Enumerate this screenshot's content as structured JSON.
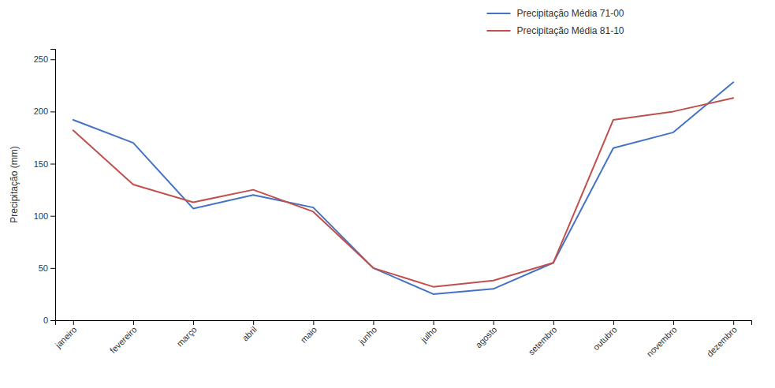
{
  "chart_data": {
    "type": "line",
    "categories": [
      "janeiro",
      "fevereiro",
      "março",
      "abril",
      "maio",
      "junho",
      "julho",
      "agosto",
      "setembro",
      "outubro",
      "novembro",
      "dezembro"
    ],
    "series": [
      {
        "name": "Precipitação Média 71-00",
        "color": "#4472C4",
        "values": [
          192,
          170,
          107,
          120,
          108,
          50,
          25,
          30,
          55,
          165,
          180,
          228
        ]
      },
      {
        "name": "Precipitação Média 81-10",
        "color": "#C0504D",
        "values": [
          182,
          130,
          113,
          125,
          104,
          50,
          32,
          38,
          55,
          192,
          200,
          213
        ]
      }
    ],
    "ylabel": "Precipitação (mm)",
    "ylim": [
      0,
      260
    ],
    "yticks": [
      0,
      50,
      100,
      150,
      200,
      250
    ],
    "grid": false,
    "legend": "upper right"
  }
}
